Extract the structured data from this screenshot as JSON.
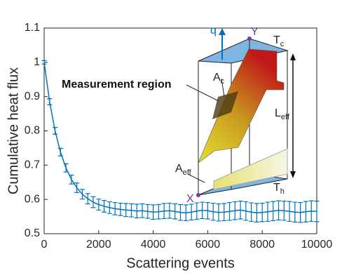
{
  "chart_data": {
    "type": "line",
    "xlabel": "Scattering events",
    "ylabel": "Cumulative heat flux",
    "x": [
      0,
      200,
      400,
      600,
      800,
      1000,
      1200,
      1400,
      1600,
      1800,
      2000,
      2200,
      2400,
      2600,
      2800,
      3000,
      3200,
      3400,
      3600,
      3800,
      4000,
      4200,
      4400,
      4600,
      4800,
      5000,
      5200,
      5400,
      5600,
      5800,
      6000,
      6200,
      6400,
      6600,
      6800,
      7000,
      7200,
      7400,
      7600,
      7800,
      8000,
      8200,
      8400,
      8600,
      8800,
      9000,
      9200,
      9400,
      9600,
      9800,
      10000
    ],
    "series": [
      {
        "color": "#0072bd",
        "values": [
          1.0,
          0.885,
          0.8,
          0.738,
          0.692,
          0.658,
          0.634,
          0.615,
          0.602,
          0.592,
          0.585,
          0.58,
          0.576,
          0.573,
          0.571,
          0.569,
          0.568,
          0.566,
          0.567,
          0.565,
          0.563,
          0.564,
          0.566,
          0.567,
          0.565,
          0.562,
          0.561,
          0.563,
          0.566,
          0.568,
          0.567,
          0.564,
          0.562,
          0.563,
          0.565,
          0.567,
          0.569,
          0.566,
          0.563,
          0.561,
          0.562,
          0.564,
          0.566,
          0.568,
          0.567,
          0.565,
          0.563,
          0.562,
          0.564,
          0.566,
          0.565
        ],
        "errors": [
          0.005,
          0.009,
          0.01,
          0.011,
          0.012,
          0.013,
          0.014,
          0.014,
          0.015,
          0.016,
          0.016,
          0.017,
          0.017,
          0.018,
          0.018,
          0.019,
          0.019,
          0.02,
          0.02,
          0.02,
          0.021,
          0.021,
          0.022,
          0.022,
          0.022,
          0.023,
          0.023,
          0.023,
          0.024,
          0.024,
          0.024,
          0.025,
          0.025,
          0.025,
          0.026,
          0.026,
          0.026,
          0.027,
          0.027,
          0.027,
          0.027,
          0.028,
          0.028,
          0.028,
          0.028,
          0.029,
          0.029,
          0.029,
          0.03,
          0.03,
          0.03
        ]
      }
    ],
    "xlim": [
      0,
      10000
    ],
    "xticks": [
      0,
      2000,
      4000,
      6000,
      8000,
      10000
    ],
    "ylim": [
      0.5,
      1.1
    ],
    "yticks": [
      0.5,
      0.6,
      0.7,
      0.8,
      0.9,
      1,
      1.1
    ],
    "annotations": [
      {
        "text": "q"
      },
      {
        "text": "Y"
      },
      {
        "text": "T",
        "sub": "c"
      },
      {
        "text": "A",
        "sub": "c"
      },
      {
        "text": "Measurement region"
      },
      {
        "text": "L",
        "sub": "eff"
      },
      {
        "text": "A",
        "sub": "eff"
      },
      {
        "text": "X"
      },
      {
        "text": "T",
        "sub": "h"
      }
    ]
  }
}
